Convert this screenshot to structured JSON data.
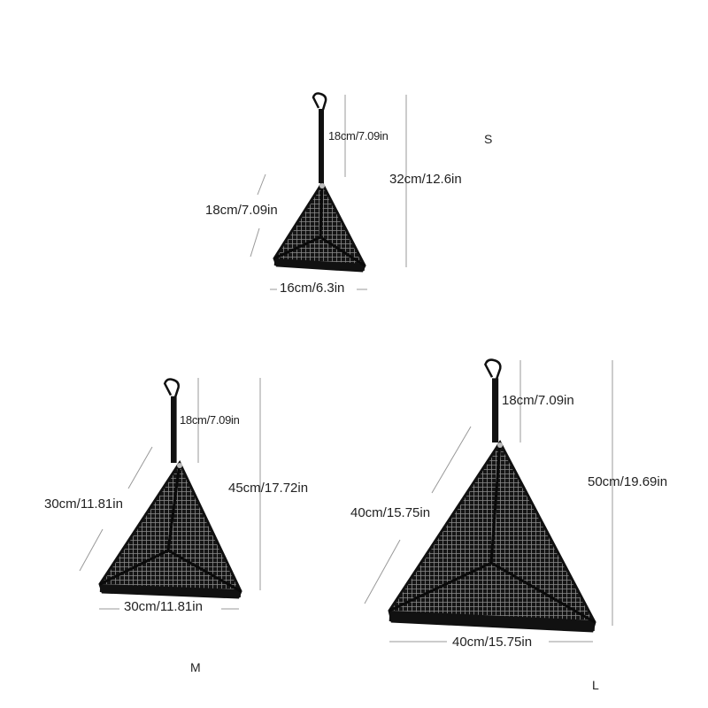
{
  "colors": {
    "mesh": "#1a1a1a",
    "mesh_grid": "#8a8a8a",
    "dimension_line": "#999999",
    "text": "#222222"
  },
  "sizes": [
    {
      "size_label": "S",
      "strap": "18cm/7.09in",
      "total_height": "32cm/12.6in",
      "side": "18cm/7.09in",
      "base": "16cm/6.3in"
    },
    {
      "size_label": "M",
      "strap": "18cm/7.09in",
      "total_height": "45cm/17.72in",
      "side": "30cm/11.81in",
      "base": "30cm/11.81in"
    },
    {
      "size_label": "L",
      "strap": "18cm/7.09in",
      "total_height": "50cm/19.69in",
      "side": "40cm/15.75in",
      "base": "40cm/15.75in"
    }
  ]
}
